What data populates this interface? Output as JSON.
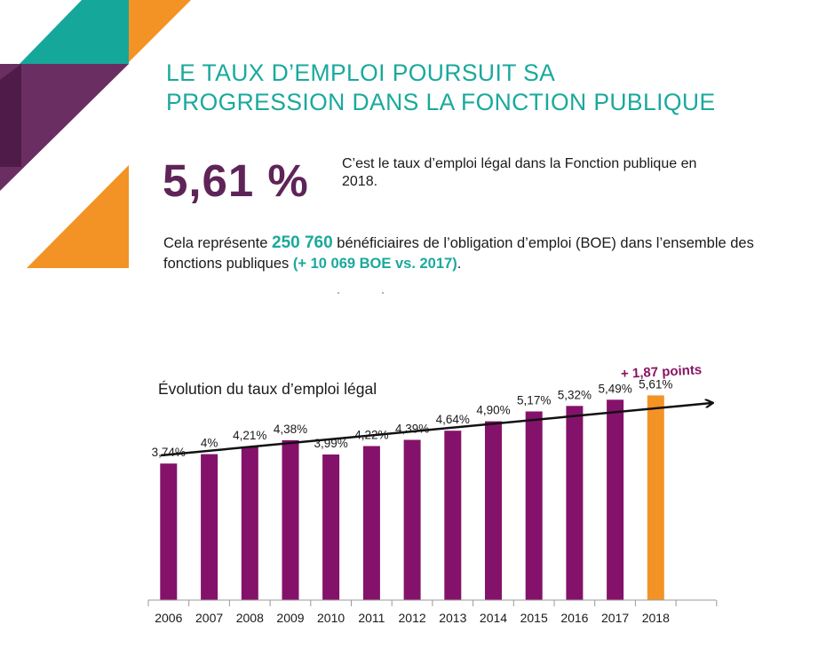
{
  "header": {
    "title_line1": "LE TAUX D’EMPLOI POURSUIT SA",
    "title_line2": "PROGRESSION DANS LA FONCTION PUBLIQUE"
  },
  "kpi": {
    "value": "5,61 %",
    "description": "C’est le taux d’emploi légal dans la Fonction publique en 2018."
  },
  "summary": {
    "part1": "Cela représente ",
    "count": "250 760",
    "part2": " bénéficiaires de l’obligation d’emploi (BOE) dans l’ensemble des fonctions publiques ",
    "delta": "(+ 10 069 BOE vs. 2017)",
    "part3": "."
  },
  "colors": {
    "teal": "#1aa99c",
    "purple_dark": "#5f2457",
    "bar_purple": "#84126a",
    "bar_orange": "#f39325",
    "deco_orange": "#f39325",
    "deco_teal": "#16a79b",
    "deco_purple": "#6b2e62",
    "deco_purple_dark": "#4f1b48"
  },
  "chart_data": {
    "type": "bar",
    "title": "Évolution du taux d’emploi légal",
    "categories": [
      "2006",
      "2007",
      "2008",
      "2009",
      "2010",
      "2011",
      "2012",
      "2013",
      "2014",
      "2015",
      "2016",
      "2017",
      "2018"
    ],
    "values": [
      3.74,
      4.0,
      4.21,
      4.38,
      3.99,
      4.22,
      4.39,
      4.64,
      4.9,
      5.17,
      5.32,
      5.49,
      5.61
    ],
    "labels": [
      "3,74%",
      "4%",
      "4,21%",
      "4,38%",
      "3,99%",
      "4,22%",
      "4,39%",
      "4,64%",
      "4,90%",
      "5,17%",
      "5,32%",
      "5,49%",
      "5,61%"
    ],
    "highlight_category": "2018",
    "trend_annotation": "+ 1,87 points",
    "ylim": [
      0,
      7.2
    ],
    "grid": false,
    "legend": "none"
  }
}
